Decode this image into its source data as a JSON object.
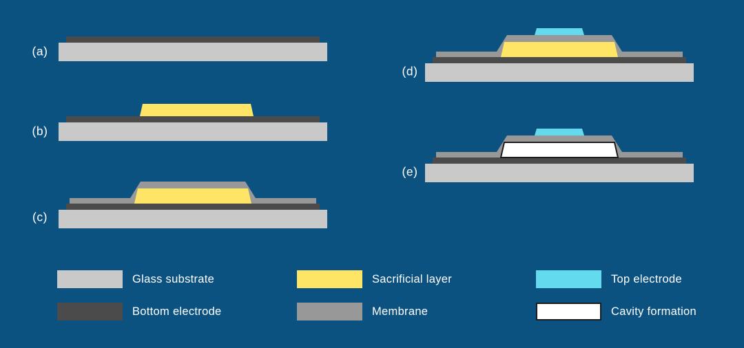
{
  "figure": {
    "background": "#0c5281",
    "text_color": "#ffffff",
    "kind": "fabrication-process-cross-sections"
  },
  "colors": {
    "glass_substrate": "#c9c9c9",
    "bottom_electrode": "#4b4b4b",
    "sacrificial_layer": "#ffe566",
    "membrane": "#989898",
    "top_electrode": "#64daee",
    "cavity_fill": "#ffffff",
    "cavity_border": "#1c1c1c"
  },
  "steps": [
    {
      "id": "a",
      "label": "(a)",
      "layers": [
        "substrate",
        "bottom_electrode"
      ]
    },
    {
      "id": "b",
      "label": "(b)",
      "layers": [
        "substrate",
        "bottom_electrode",
        "sacrificial"
      ]
    },
    {
      "id": "c",
      "label": "(c)",
      "layers": [
        "substrate",
        "bottom_electrode",
        "membrane",
        "sacrificial_inner"
      ]
    },
    {
      "id": "d",
      "label": "(d)",
      "layers": [
        "substrate",
        "bottom_electrode",
        "membrane",
        "sacrificial_inner",
        "top_electrode"
      ]
    },
    {
      "id": "e",
      "label": "(e)",
      "layers": [
        "substrate",
        "bottom_electrode",
        "membrane",
        "cavity",
        "top_electrode"
      ]
    }
  ],
  "legend": {
    "columns": [
      {
        "items": [
          {
            "label": "Glass substrate"
          },
          {
            "label": "Bottom electrode"
          }
        ]
      },
      {
        "items": [
          {
            "label": "Sacrificial layer"
          },
          {
            "label": "Membrane"
          }
        ]
      },
      {
        "items": [
          {
            "label": "Top electrode"
          },
          {
            "label": "Cavity formation"
          }
        ]
      }
    ]
  }
}
